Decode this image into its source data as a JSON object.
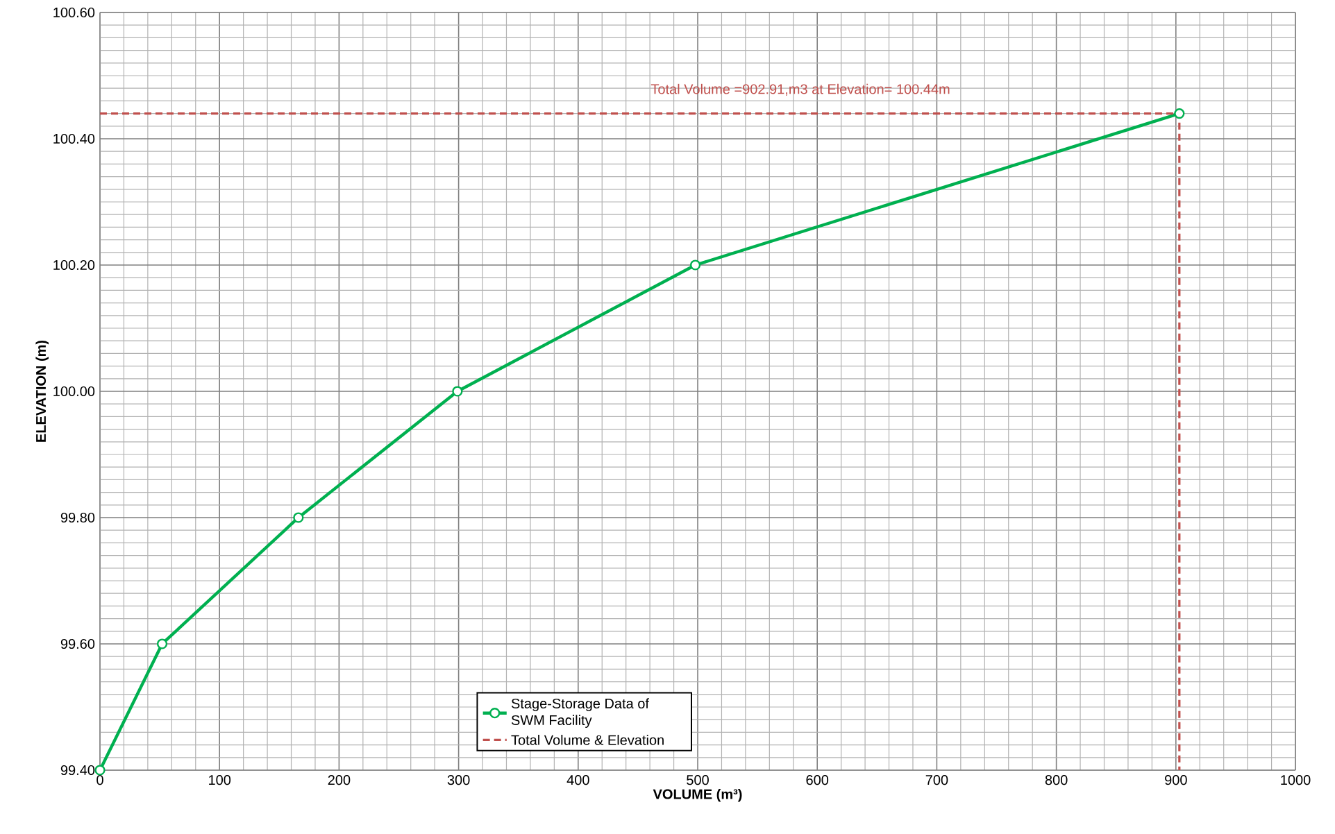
{
  "chart_data": {
    "type": "line",
    "xlabel": "VOLUME (m³)",
    "ylabel": "ELEVATION (m)",
    "xlim": [
      0,
      1000
    ],
    "ylim": [
      99.4,
      100.6
    ],
    "xticks": [
      0,
      100,
      200,
      300,
      400,
      500,
      600,
      700,
      800,
      900,
      1000
    ],
    "yticks": [
      {
        "value": 99.4,
        "label": "99.40"
      },
      {
        "value": 99.6,
        "label": "99.60"
      },
      {
        "value": 99.8,
        "label": "99.80"
      },
      {
        "value": 100.0,
        "label": "100.00"
      },
      {
        "value": 100.2,
        "label": "100.20"
      },
      {
        "value": 100.4,
        "label": "100.40"
      },
      {
        "value": 100.6,
        "label": "100.60"
      }
    ],
    "grid": true,
    "legend": "bottom",
    "annotations": [
      "Total Volume =902.91,m3 at Elevation= 100.44m"
    ],
    "series": [
      {
        "name": "Stage-Storage Data of SWM Facility",
        "color": "#00b050",
        "marker": "circle",
        "line_style": "solid",
        "x": [
          0,
          52,
          166,
          299,
          498,
          902.91
        ],
        "values": [
          99.4,
          99.6,
          99.8,
          100.0,
          100.2,
          100.44
        ]
      },
      {
        "name": "Total Volume & Elevation",
        "color": "#c0504d",
        "marker": "none",
        "line_style": "dashed",
        "x": [
          0,
          902.91,
          902.91
        ],
        "values": [
          100.44,
          100.44,
          99.4
        ]
      }
    ]
  }
}
